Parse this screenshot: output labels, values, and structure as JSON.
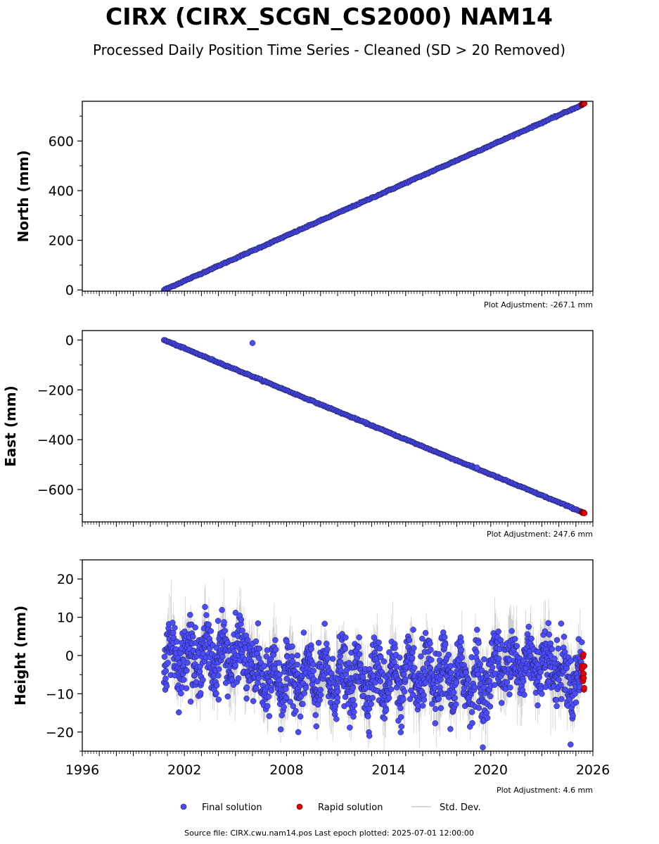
{
  "title": "CIRX (CIRX_SCGN_CS2000) NAM14",
  "subtitle": "Processed Daily Position Time Series - Cleaned (SD > 20 Removed)",
  "colors": {
    "final": "#4b4bff",
    "rapid": "#e60000",
    "stddev": "#b0b0b0",
    "edge": "#1a1a40"
  },
  "chart_data": [
    {
      "type": "scatter",
      "ylabel": "North (mm)",
      "adjustment": "Plot Adjustment: -267.1 mm",
      "xlim": [
        1996,
        2026
      ],
      "ylim": [
        -5,
        760
      ],
      "yticks": [
        0,
        200,
        400,
        600
      ],
      "ytick_labels": [
        "0",
        "200",
        "400",
        "600"
      ],
      "series": [
        {
          "name": "Final solution",
          "kind": "linear",
          "x": [
            2000.8,
            2025.35
          ],
          "y": [
            0,
            745
          ]
        },
        {
          "name": "Rapid solution",
          "kind": "linear",
          "x": [
            2025.35,
            2025.5
          ],
          "y": [
            746,
            752
          ]
        }
      ],
      "outliers": []
    },
    {
      "type": "scatter",
      "ylabel": "East (mm)",
      "adjustment": "Plot Adjustment: 247.6 mm",
      "xlim": [
        1996,
        2026
      ],
      "ylim": [
        -730,
        38
      ],
      "yticks": [
        0,
        -200,
        -400,
        -600
      ],
      "ytick_labels": [
        "0",
        "−200",
        "−400",
        "−600"
      ],
      "series": [
        {
          "name": "Final solution",
          "kind": "linear",
          "x": [
            2000.8,
            2025.35
          ],
          "y": [
            0,
            -690
          ]
        },
        {
          "name": "Rapid solution",
          "kind": "linear",
          "x": [
            2025.35,
            2025.5
          ],
          "y": [
            -691,
            -695
          ]
        }
      ],
      "outliers": [
        {
          "x": 2006.0,
          "y": -12
        },
        {
          "x": 2019.2,
          "y": -512
        }
      ]
    },
    {
      "type": "scatter",
      "ylabel": "Height (mm)",
      "adjustment": "Plot Adjustment: 4.6 mm",
      "xlim": [
        1996,
        2026
      ],
      "ylim": [
        -25,
        25
      ],
      "yticks": [
        20,
        10,
        0,
        -10,
        -20
      ],
      "ytick_labels": [
        "20",
        "10",
        "0",
        "−10",
        "−20"
      ],
      "xticks": [
        1996,
        2002,
        2008,
        2014,
        2020,
        2026
      ],
      "xtick_labels": [
        "1996",
        "2002",
        "2008",
        "2014",
        "2020",
        "2026"
      ],
      "series": [
        {
          "name": "Final solution",
          "kind": "noise",
          "x": [
            2000.8,
            2025.35
          ],
          "mean": -2,
          "spread": 7
        },
        {
          "name": "Rapid solution",
          "kind": "noise",
          "x": [
            2025.35,
            2025.5
          ],
          "mean": -4,
          "spread": 3
        }
      ],
      "outliers": []
    }
  ],
  "legend": [
    {
      "label": "Final solution",
      "marker": "dot-blue"
    },
    {
      "label": "Rapid solution",
      "marker": "dot-red"
    },
    {
      "label": "Std. Dev.",
      "marker": "line-gray"
    }
  ],
  "footer": "Source file: CIRX.cwu.nam14.pos  Last epoch plotted: 2025-07-01 12:00:00"
}
